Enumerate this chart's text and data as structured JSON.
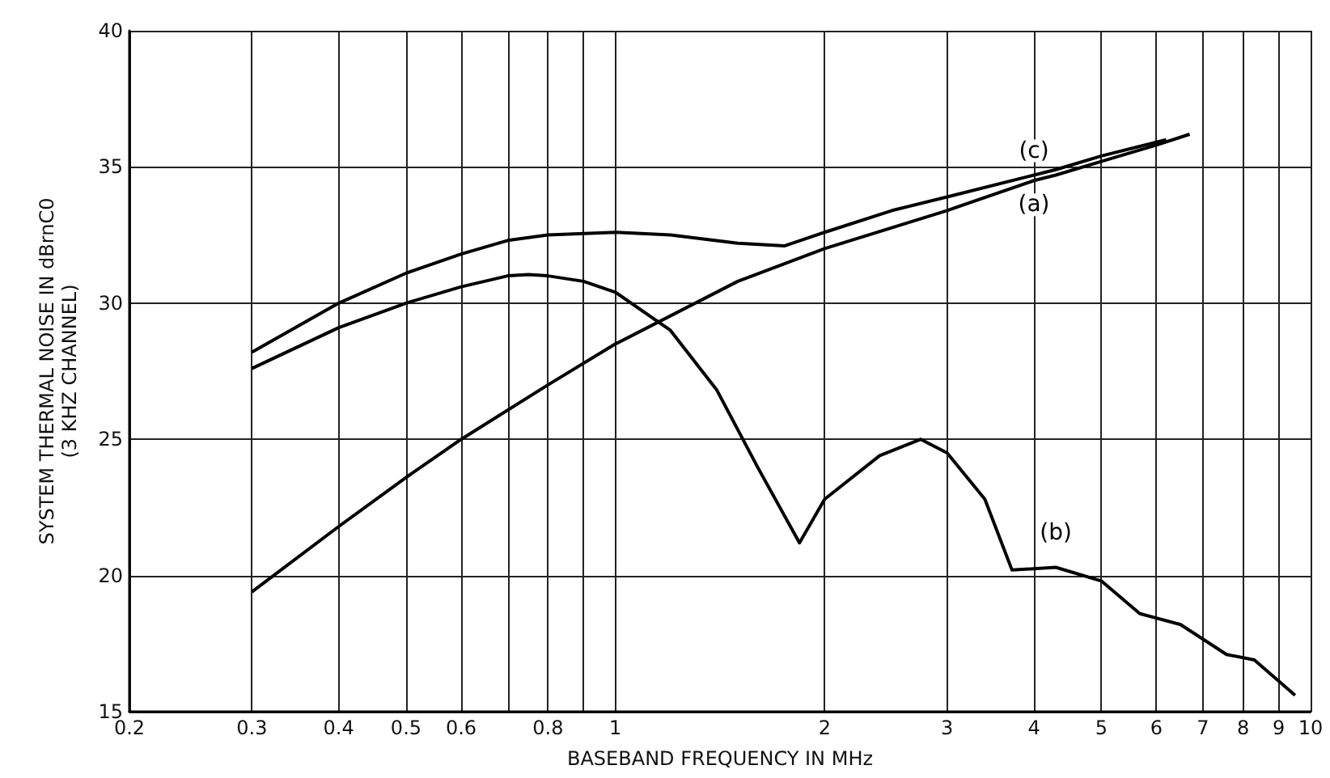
{
  "chart_data": {
    "type": "line",
    "xlabel": "BASEBAND FREQUENCY IN MHz",
    "ylabel": "SYSTEM THERMAL NOISE IN dBrnC0\n(3 KHZ CHANNEL)",
    "log": "x",
    "grid": true,
    "legend": false,
    "xlim": [
      0.2,
      10
    ],
    "xticks": [
      0.2,
      0.3,
      0.4,
      0.5,
      0.6,
      {
        "value": 0.7,
        "label": null
      },
      0.8,
      {
        "value": 0.9,
        "label": null
      },
      1,
      2,
      3,
      4,
      5,
      6,
      7,
      8,
      9,
      10
    ],
    "ylim": [
      15,
      40
    ],
    "yticks": [
      15,
      20,
      25,
      30,
      35,
      40
    ],
    "series": [
      {
        "name": "(a)",
        "color": "#000000",
        "x": [
          0.3,
          0.4,
          0.5,
          0.6,
          0.8,
          1,
          1.5,
          2,
          3,
          4,
          4.3,
          5,
          6,
          6.7
        ],
        "values": [
          19.4,
          21.8,
          23.6,
          25.0,
          27.0,
          28.5,
          30.8,
          32.0,
          33.4,
          34.5,
          34.7,
          35.2,
          35.8,
          36.2
        ]
      },
      {
        "name": "(b)",
        "color": "#000000",
        "x": [
          0.3,
          0.4,
          0.5,
          0.6,
          0.7,
          0.75,
          0.8,
          0.9,
          1,
          1.2,
          1.4,
          1.6,
          1.84,
          2,
          2.4,
          2.75,
          3,
          3.4,
          3.72,
          4.3,
          5,
          5.68,
          6.5,
          7.57,
          8.3,
          9.5
        ],
        "values": [
          27.6,
          29.1,
          30.0,
          30.6,
          31.0,
          31.05,
          31.0,
          30.8,
          30.4,
          29.0,
          26.8,
          24.0,
          21.2,
          22.8,
          24.4,
          25.0,
          24.5,
          22.8,
          20.2,
          20.3,
          19.8,
          18.6,
          18.2,
          17.1,
          16.9,
          15.6
        ]
      },
      {
        "name": "(c)",
        "color": "#000000",
        "x": [
          0.3,
          0.4,
          0.5,
          0.6,
          0.7,
          0.8,
          1,
          1.2,
          1.5,
          1.75,
          2,
          2.5,
          3,
          4,
          4.3,
          5,
          6.2
        ],
        "values": [
          28.2,
          30.0,
          31.1,
          31.8,
          32.3,
          32.5,
          32.6,
          32.5,
          32.2,
          32.1,
          32.6,
          33.4,
          33.9,
          34.7,
          34.9,
          35.4,
          36.0
        ]
      }
    ]
  }
}
